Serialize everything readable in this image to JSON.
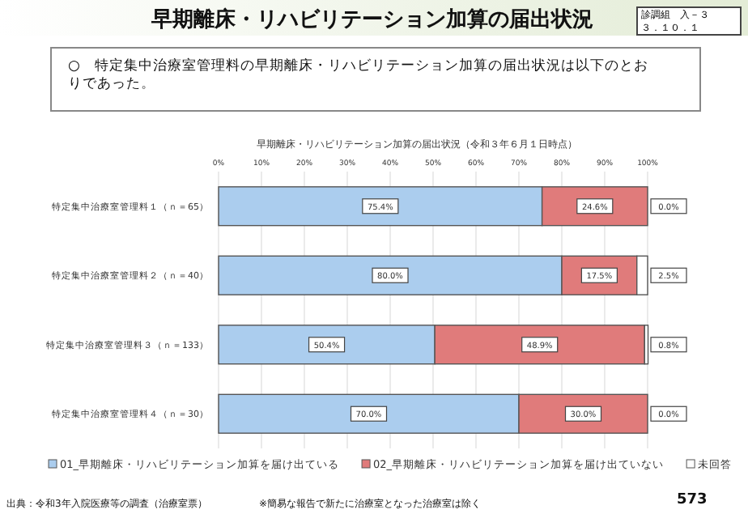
{
  "chart_data": {
    "type": "bar",
    "orientation": "horizontal",
    "stacked": true,
    "title": "早期離床・リハビリテーション加算の届出状況",
    "subtitle": "早期離床・リハビリテーション加算の届出状況（令和３年６月１日時点）",
    "categories": [
      "特定集中治療室管理料１（ｎ＝65）",
      "特定集中治療室管理料２（ｎ＝40）",
      "特定集中治療室管理料３（ｎ＝133）",
      "特定集中治療室管理料４（ｎ＝30）"
    ],
    "series": [
      {
        "name": "01_早期離床・リハビリテーション加算を届け出ている",
        "color": "#abcdee",
        "values": [
          75.4,
          80.0,
          50.4,
          70.0
        ],
        "value_labels": [
          "75.4%",
          "80.0%",
          "50.4%",
          "70.0%"
        ]
      },
      {
        "name": "02_早期離床・リハビリテーション加算を届け出ていない",
        "color": "#e07b7b",
        "values": [
          24.6,
          17.5,
          48.9,
          30.0
        ],
        "value_labels": [
          "24.6%",
          "17.5%",
          "48.9%",
          "30.0%"
        ]
      },
      {
        "name": "未回答",
        "color": "#ffffff",
        "values": [
          0.0,
          2.5,
          0.8,
          0.0
        ],
        "value_labels": [
          "0.0%",
          "2.5%",
          "0.8%",
          "0.0%"
        ]
      }
    ],
    "xlim": [
      0,
      100
    ],
    "xticks": [
      {
        "value": 0,
        "label": "0%"
      },
      {
        "value": 10,
        "label": "10%"
      },
      {
        "value": 20,
        "label": "20%"
      },
      {
        "value": 30,
        "label": "30%"
      },
      {
        "value": 40,
        "label": "40%"
      },
      {
        "value": 50,
        "label": "50%"
      },
      {
        "value": 60,
        "label": "60%"
      },
      {
        "value": 70,
        "label": "70%"
      },
      {
        "value": 80,
        "label": "80%"
      },
      {
        "value": 90,
        "label": "90%"
      },
      {
        "value": 100,
        "label": "100%"
      }
    ],
    "grid": "x",
    "legend": "bottom",
    "annotations": [
      "診調組　入－３",
      "３．１０．１",
      "○　特定集中治療室管理料の早期離床・リハビリテーション加算の届出状況は以下のとおりであった。",
      "出典：令和3年入院医療等の調査（治療室票）",
      "※簡易な報告で新たに治療室となった治療室は除く",
      "573"
    ]
  }
}
